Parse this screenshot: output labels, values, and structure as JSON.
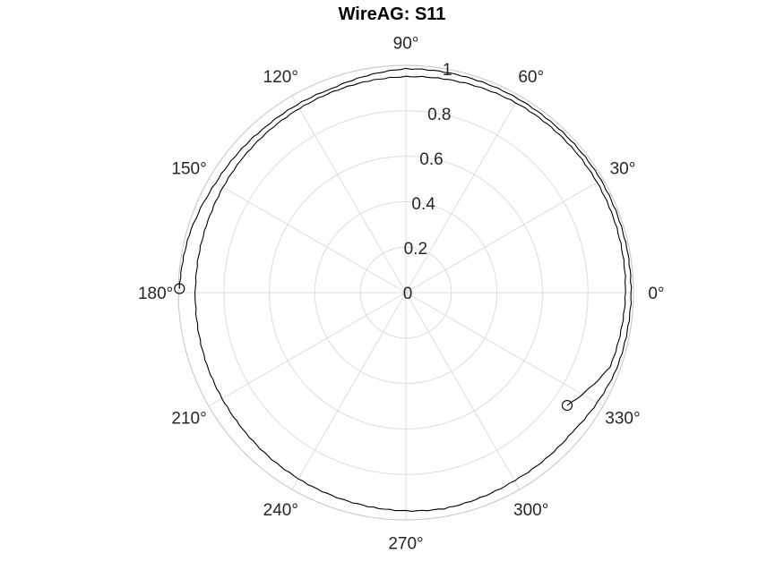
{
  "chart_data": {
    "type": "polar-line",
    "title": "WireAG: S11",
    "radial_ticks": [
      "0",
      "0.2",
      "0.4",
      "0.6",
      "0.8",
      "1"
    ],
    "radial_tick_values": [
      0,
      0.2,
      0.4,
      0.6,
      0.8,
      1
    ],
    "rlim": [
      0,
      1
    ],
    "angular_ticks": [
      "0°",
      "30°",
      "60°",
      "90°",
      "120°",
      "150°",
      "180°",
      "210°",
      "240°",
      "270°",
      "300°",
      "330°"
    ],
    "angular_tick_values_deg": [
      0,
      30,
      60,
      90,
      120,
      150,
      180,
      210,
      240,
      270,
      300,
      330
    ],
    "grid": true,
    "series": [
      {
        "color": "#000000",
        "start_marker": "circle",
        "end_marker": "circle",
        "points": [
          {
            "theta_deg": 179,
            "r": 0.995
          },
          {
            "theta_deg": 165,
            "r": 0.985
          },
          {
            "theta_deg": 150,
            "r": 0.965
          },
          {
            "theta_deg": 130,
            "r": 0.955
          },
          {
            "theta_deg": 110,
            "r": 0.955
          },
          {
            "theta_deg": 90,
            "r": 0.985
          },
          {
            "theta_deg": 70,
            "r": 0.985
          },
          {
            "theta_deg": 50,
            "r": 0.985
          },
          {
            "theta_deg": 30,
            "r": 0.99
          },
          {
            "theta_deg": 10,
            "r": 0.99
          },
          {
            "theta_deg": 0,
            "r": 0.99
          },
          {
            "theta_deg": -20,
            "r": 0.985
          },
          {
            "theta_deg": -40,
            "r": 0.955
          },
          {
            "theta_deg": -60,
            "r": 0.955
          },
          {
            "theta_deg": -80,
            "r": 0.965
          },
          {
            "theta_deg": -100,
            "r": 0.955
          },
          {
            "theta_deg": -120,
            "r": 0.945
          },
          {
            "theta_deg": -140,
            "r": 0.935
          },
          {
            "theta_deg": -160,
            "r": 0.93
          },
          {
            "theta_deg": 180,
            "r": 0.925
          },
          {
            "theta_deg": 160,
            "r": 0.925
          },
          {
            "theta_deg": 140,
            "r": 0.93
          },
          {
            "theta_deg": 120,
            "r": 0.935
          },
          {
            "theta_deg": 100,
            "r": 0.945
          },
          {
            "theta_deg": 80,
            "r": 0.955
          },
          {
            "theta_deg": 60,
            "r": 0.965
          },
          {
            "theta_deg": 40,
            "r": 0.97
          },
          {
            "theta_deg": 20,
            "r": 0.97
          },
          {
            "theta_deg": 0,
            "r": 0.965
          },
          {
            "theta_deg": -20,
            "r": 0.955
          },
          {
            "theta_deg": -35,
            "r": 0.865
          }
        ]
      }
    ]
  }
}
